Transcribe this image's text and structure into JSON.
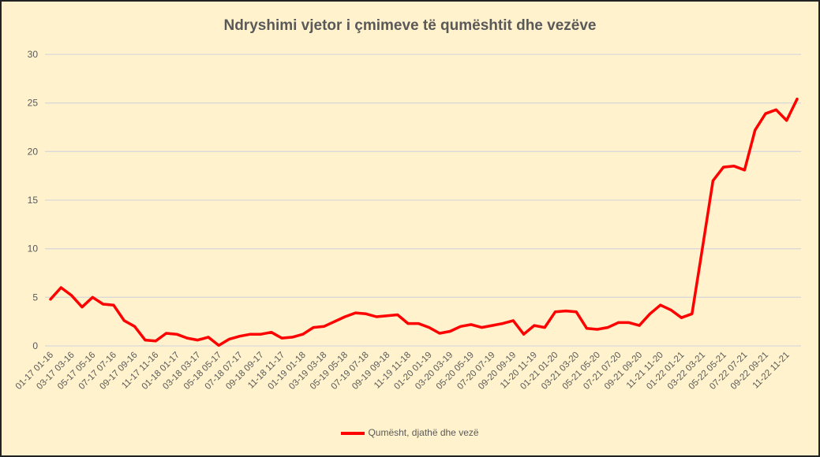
{
  "chart_data": {
    "type": "line",
    "title": "Ndryshimi vjetor i çmimeve të qumështit dhe vezëve",
    "xlabel": "",
    "ylabel": "",
    "ylim": [
      0,
      30
    ],
    "yticks": [
      0,
      5,
      10,
      15,
      20,
      25,
      30
    ],
    "grid": true,
    "legend_position": "bottom",
    "x_tick_labels": [
      "01-17 01-16",
      "03-17 03-16",
      "05-17 05-16",
      "07-17 07-16",
      "09-17 09-16",
      "11-17 11-16",
      "01-18 01-17",
      "03-18 03-17",
      "05-18 05-17",
      "07-18 07-17",
      "09-18 09-17",
      "11-18 11-17",
      "01-19 01-18",
      "03-19 03-18",
      "05-19 05-18",
      "07-19 07-18",
      "09-19 09-18",
      "11-19 11-18",
      "01-20 01-19",
      "03-20 03-19",
      "05-20 05-19",
      "07-20 07-19",
      "09-20 09-19",
      "11-20 11-19",
      "01-21 01-20",
      "03-21 03-20",
      "05-21 05-20",
      "07-21 07-20",
      "09-21 09-20",
      "11-21 11-20",
      "01-22 01-21",
      "03-22 03-21",
      "05-22 05-21",
      "07-22 07-21",
      "09-22 09-21",
      "11-22 11-21"
    ],
    "series": [
      {
        "name": "Qumësht, djathë dhe vezë",
        "color": "#FF0000",
        "values": [
          4.8,
          6.0,
          5.2,
          4.0,
          5.0,
          4.3,
          4.2,
          2.6,
          2.0,
          0.6,
          0.5,
          1.3,
          1.2,
          0.8,
          0.6,
          0.9,
          0.05,
          0.7,
          1.0,
          1.2,
          1.2,
          1.4,
          0.8,
          0.9,
          1.2,
          1.9,
          2.0,
          2.5,
          3.0,
          3.4,
          3.3,
          3.0,
          3.1,
          3.2,
          2.3,
          2.3,
          1.9,
          1.3,
          1.5,
          2.0,
          2.2,
          1.9,
          2.1,
          2.3,
          2.6,
          1.2,
          2.1,
          1.9,
          3.5,
          3.6,
          3.5,
          1.8,
          1.7,
          1.9,
          2.4,
          2.4,
          2.1,
          3.3,
          4.2,
          3.7,
          2.9,
          3.3,
          10.1,
          17.0,
          18.4,
          18.5,
          18.1,
          22.2,
          23.9,
          24.3,
          23.2,
          25.4
        ]
      }
    ]
  }
}
